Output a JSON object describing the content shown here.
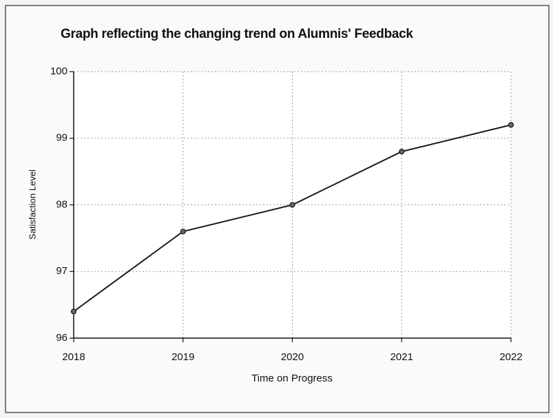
{
  "chart_data": {
    "type": "line",
    "title": "Graph reflecting the changing trend on Alumnis' Feedback",
    "xlabel": "Time on Progress",
    "ylabel": "Satisfaction Level",
    "x": [
      2018,
      2019,
      2020,
      2021,
      2022
    ],
    "series": [
      {
        "name": "Satisfaction Level",
        "color": "#1a1a1a",
        "values": [
          96.4,
          97.6,
          98.0,
          98.8,
          99.2
        ]
      }
    ],
    "xlim": [
      2018,
      2022
    ],
    "xticks": [
      2018,
      2019,
      2020,
      2021,
      2022
    ],
    "ylim": [
      96,
      100
    ],
    "yticks": [
      96,
      97,
      98,
      99,
      100
    ],
    "grid": true
  }
}
